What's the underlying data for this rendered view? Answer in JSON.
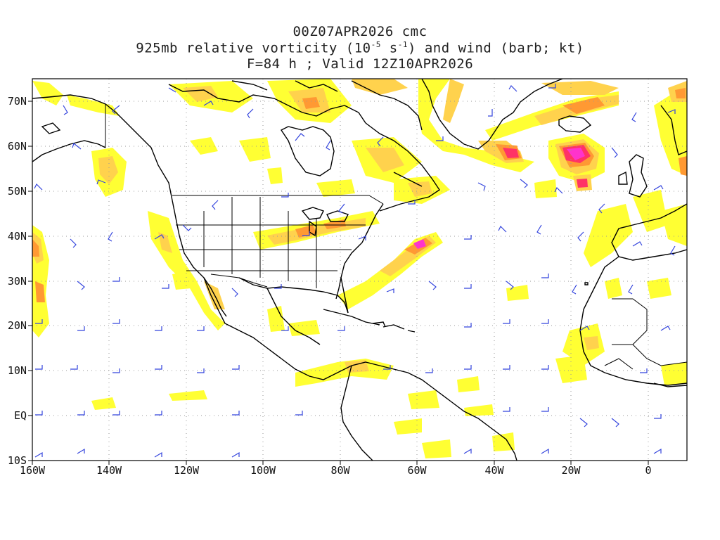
{
  "header": {
    "line1": "00Z07APR2026 cmc",
    "line2_a": "925mb relative vorticity (10",
    "line2_exp1": "-5",
    "line2_b": " s",
    "line2_exp2": "-1",
    "line2_c": ") and wind (barb; kt)",
    "line3": "F=84 h ; Valid 12Z10APR2026"
  },
  "map": {
    "projection": "lat-lon",
    "lon_range": [
      "160W",
      "10E"
    ],
    "lat_range": [
      "10S",
      "75N"
    ],
    "grid": "dotted",
    "lat_labels": [
      "70N",
      "60N",
      "50N",
      "40N",
      "30N",
      "20N",
      "10N",
      "EQ",
      "10S"
    ],
    "lon_labels": [
      "160W",
      "140W",
      "120W",
      "100W",
      "80W",
      "60W",
      "40W",
      "20W",
      "0"
    ],
    "colors": {
      "vort_low": "#ffff33",
      "vort_mid": "#ffd24d",
      "vort_high": "#ff9933",
      "vort_peak": "#ff3366",
      "vort_extreme": "#ff00aa",
      "barb": "#3344dd",
      "coast": "#000000"
    }
  }
}
